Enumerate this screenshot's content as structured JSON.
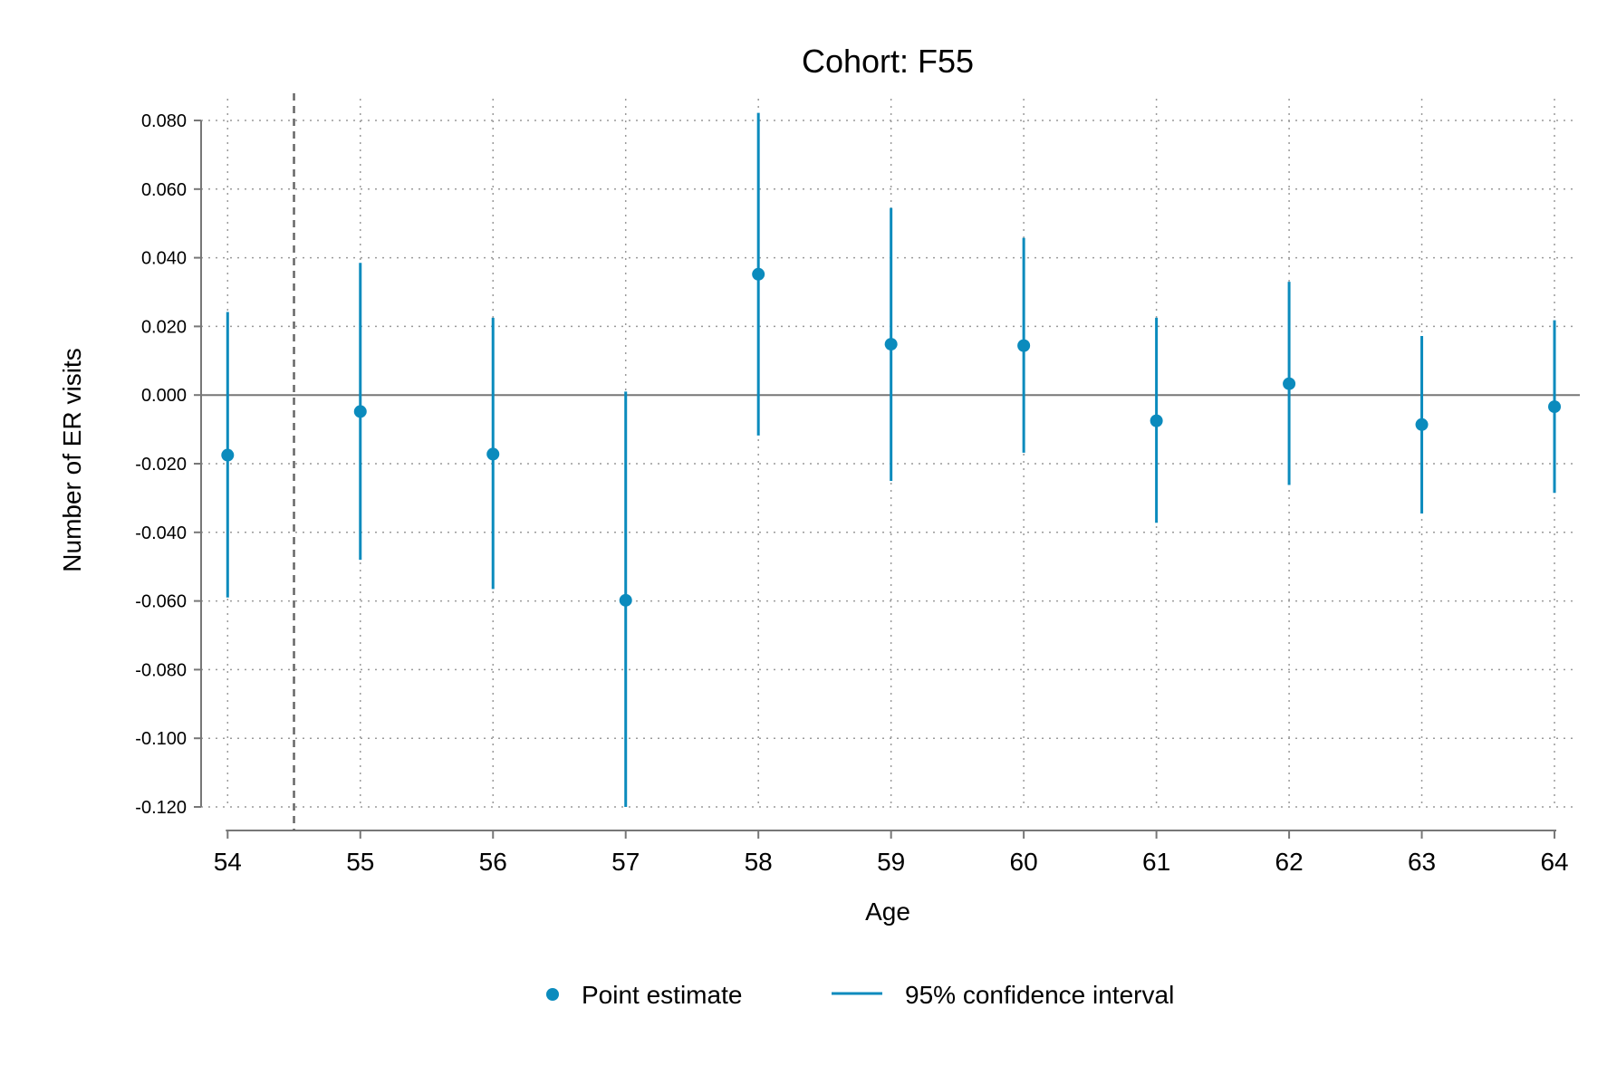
{
  "chart_data": {
    "type": "scatter",
    "title": "Cohort: F55",
    "xlabel": "Age",
    "ylabel": "Number of ER visits",
    "x": [
      54,
      55,
      56,
      57,
      58,
      59,
      60,
      61,
      62,
      63,
      64
    ],
    "x_tick_labels": [
      "54",
      "55",
      "56",
      "57",
      "58",
      "59",
      "60",
      "61",
      "62",
      "63",
      "64"
    ],
    "y_tick_values": [
      0.08,
      0.06,
      0.04,
      0.02,
      0.0,
      -0.02,
      -0.04,
      -0.06,
      -0.08,
      -0.1,
      -0.12
    ],
    "y_tick_labels": [
      "0.080",
      "0.060",
      "0.040",
      "0.020",
      "0.000",
      "-0.020",
      "-0.040",
      "-0.060",
      "-0.080",
      "-0.100",
      "-0.120"
    ],
    "xlim": [
      53.8,
      64.15
    ],
    "ylim": [
      -0.12,
      0.08
    ],
    "series": [
      {
        "name": "Point estimate",
        "values": [
          -0.0175,
          -0.0048,
          -0.0172,
          -0.0598,
          0.0352,
          0.0148,
          0.0144,
          -0.0075,
          0.0033,
          -0.0086,
          -0.0034
        ]
      },
      {
        "name": "95% confidence interval",
        "lower": [
          -0.059,
          -0.048,
          -0.0565,
          -0.12,
          -0.0118,
          -0.025,
          -0.0168,
          -0.0372,
          -0.0262,
          -0.0345,
          -0.0285
        ],
        "upper": [
          0.0242,
          0.0385,
          0.0225,
          0.001,
          0.0822,
          0.0545,
          0.0458,
          0.0225,
          0.033,
          0.0172,
          0.0218
        ]
      }
    ],
    "reference_lines": {
      "horizontal_y": 0,
      "vertical_x_dashed": 54.5
    },
    "grid": "dotted",
    "legend_position": "bottom",
    "colors": {
      "series": "#0b8bbd",
      "axis": "#777777",
      "grid": "#9a9a9a",
      "vline": "#666666"
    }
  }
}
